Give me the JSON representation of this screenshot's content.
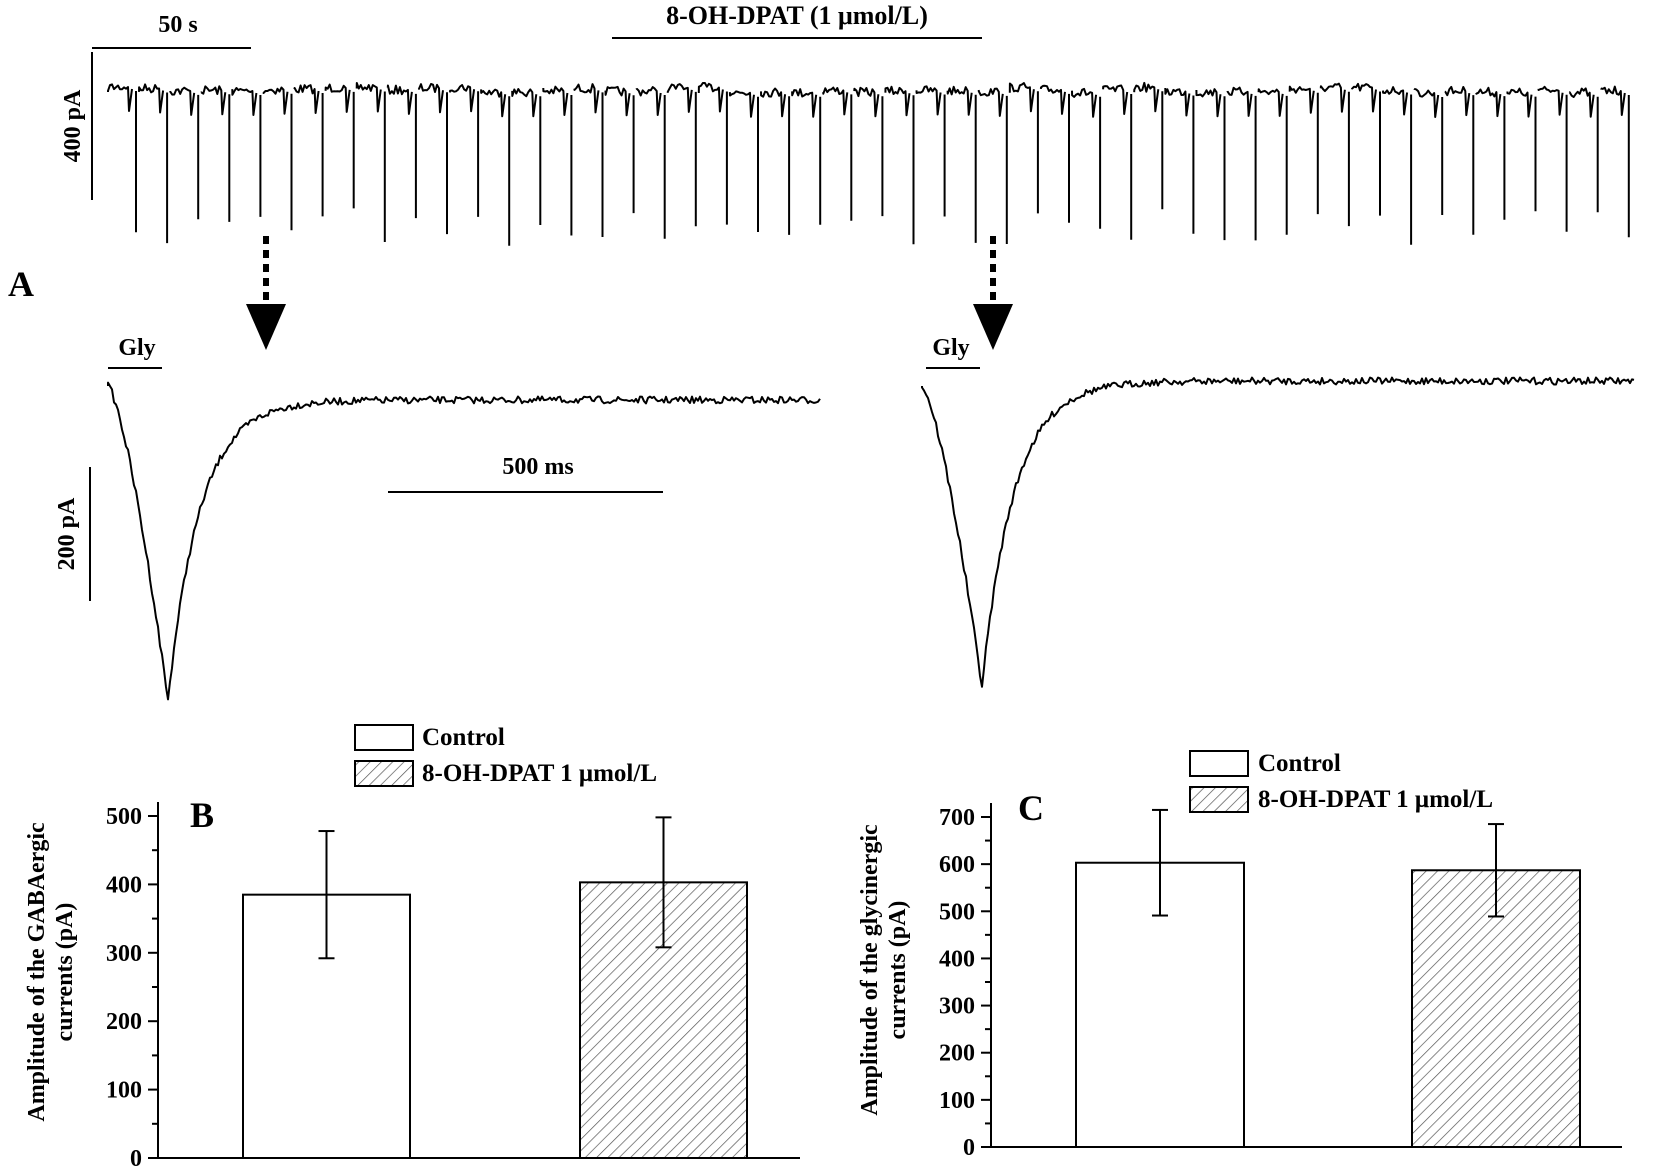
{
  "panel_a": {
    "label": "A",
    "continuous_trace": {
      "time_scale_label": "50 s",
      "current_scale_label": "400 pA",
      "drug_label": "8-OH-DPAT (1 μmol/L)"
    },
    "control_sweep": {
      "stimulus_label": "Gly"
    },
    "drug_sweep": {
      "stimulus_label": "Gly"
    },
    "sweep_time_scale_label": "500 ms",
    "sweep_current_scale_label": "200 pA"
  },
  "chart_data": [
    {
      "panel": "B",
      "type": "bar",
      "ylabel": "Amplitude of the GABAergic currents (pA)",
      "ylabel_lines": [
        "Amplitude of the GABAergic",
        "currents (pA)"
      ],
      "ylim": [
        0,
        500
      ],
      "yticks": [
        0,
        100,
        200,
        300,
        400,
        500
      ],
      "legend_position": "top-left",
      "series": [
        {
          "name": "Control",
          "value": 385,
          "error": 93,
          "pattern": "open"
        },
        {
          "name": "8-OH-DPAT 1 μmol/L",
          "value": 403,
          "error": 95,
          "pattern": "hatched"
        }
      ]
    },
    {
      "panel": "C",
      "type": "bar",
      "ylabel": "Amplitude of the glycinergic currents (pA)",
      "ylabel_lines": [
        "Amplitude of the glycinergic",
        "currents (pA)"
      ],
      "ylim": [
        0,
        700
      ],
      "yticks": [
        0,
        100,
        200,
        300,
        400,
        500,
        600,
        700
      ],
      "legend_position": "top-left",
      "series": [
        {
          "name": "Control",
          "value": 603,
          "error": 112,
          "pattern": "open"
        },
        {
          "name": "8-OH-DPAT 1 μmol/L",
          "value": 587,
          "error": 98,
          "pattern": "hatched"
        }
      ]
    }
  ]
}
